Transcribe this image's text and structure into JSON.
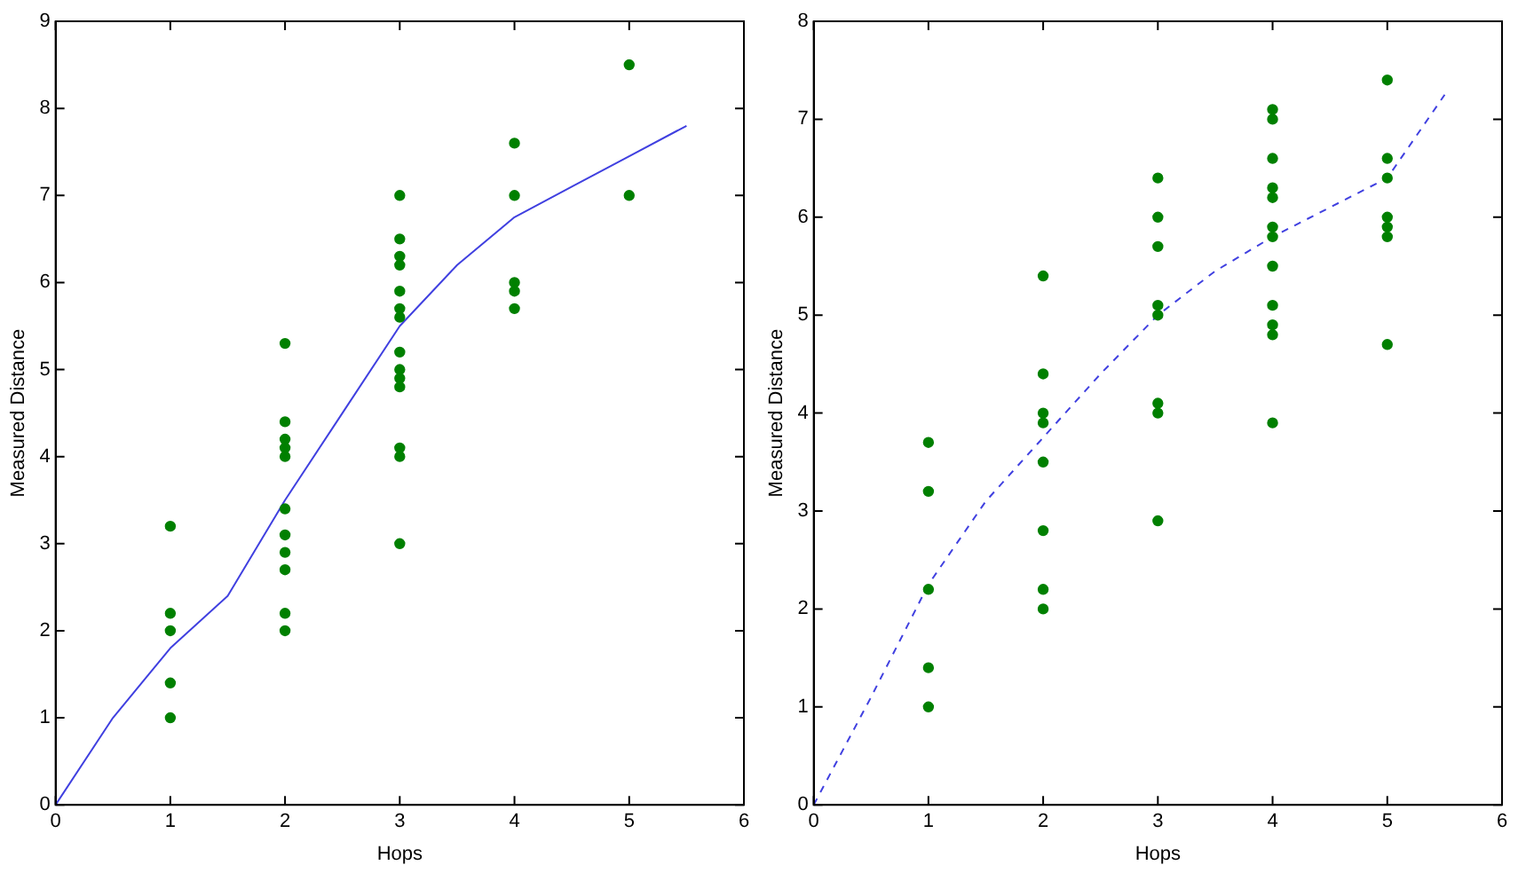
{
  "chart_data": [
    {
      "type": "scatter",
      "xlabel": "Hops",
      "ylabel": "Measured Distance",
      "xlim": [
        0,
        6
      ],
      "xticks": [
        0,
        1,
        2,
        3,
        4,
        5,
        6
      ],
      "ylim": [
        0,
        9
      ],
      "yticks": [
        0,
        1,
        2,
        3,
        4,
        5,
        6,
        7,
        8,
        9
      ],
      "grid": false,
      "legend": false,
      "series": [
        {
          "type": "scatter",
          "marker": "circle",
          "color": "#008000",
          "x": [
            1,
            1,
            1,
            1,
            1,
            2,
            2,
            2,
            2,
            2,
            2,
            2,
            2,
            2,
            2,
            2,
            3,
            3,
            3,
            3,
            3,
            3,
            3,
            3,
            3,
            3,
            3,
            3,
            3,
            3,
            4,
            4,
            4,
            4,
            4,
            5,
            5
          ],
          "values": [
            3.2,
            2.2,
            2.0,
            1.4,
            1.0,
            5.3,
            4.4,
            4.2,
            4.1,
            4.0,
            3.4,
            3.1,
            2.9,
            2.7,
            2.2,
            2.0,
            7.0,
            6.5,
            6.3,
            6.2,
            5.9,
            5.7,
            5.6,
            5.2,
            5.0,
            4.9,
            4.8,
            4.1,
            4.0,
            3.0,
            7.6,
            7.0,
            6.0,
            5.9,
            5.7,
            8.5,
            7.0
          ]
        },
        {
          "type": "line",
          "line_style": "solid",
          "marker": "none",
          "color": "#4040e0",
          "x": [
            0,
            0.5,
            1,
            1.5,
            2,
            2.5,
            3,
            3.5,
            4,
            4.5,
            5,
            5.5
          ],
          "values": [
            0,
            1.0,
            1.8,
            2.4,
            3.5,
            4.5,
            5.5,
            6.2,
            6.75,
            7.1,
            7.45,
            7.8
          ]
        }
      ]
    },
    {
      "type": "scatter",
      "xlabel": "Hops",
      "ylabel": "Measured Distance",
      "xlim": [
        0,
        6
      ],
      "xticks": [
        0,
        1,
        2,
        3,
        4,
        5,
        6
      ],
      "ylim": [
        0,
        8
      ],
      "yticks": [
        0,
        1,
        2,
        3,
        4,
        5,
        6,
        7,
        8
      ],
      "grid": false,
      "legend": false,
      "series": [
        {
          "type": "scatter",
          "marker": "circle",
          "color": "#008000",
          "x": [
            1,
            1,
            1,
            1,
            1,
            2,
            2,
            2,
            2,
            2,
            2,
            2,
            2,
            3,
            3,
            3,
            3,
            3,
            3,
            3,
            3,
            4,
            4,
            4,
            4,
            4,
            4,
            4,
            4,
            4,
            4,
            4,
            4,
            5,
            5,
            5,
            5,
            5,
            5,
            5
          ],
          "values": [
            3.7,
            3.2,
            2.2,
            1.4,
            1.0,
            5.4,
            4.4,
            4.0,
            3.9,
            3.5,
            2.8,
            2.2,
            2.0,
            6.4,
            6.0,
            5.7,
            5.1,
            5.0,
            4.1,
            4.0,
            2.9,
            7.1,
            7.0,
            6.6,
            6.3,
            6.2,
            5.9,
            5.8,
            5.5,
            5.1,
            4.9,
            4.8,
            3.9,
            7.4,
            6.6,
            6.4,
            6.0,
            5.9,
            5.8,
            4.7
          ]
        },
        {
          "type": "line",
          "line_style": "dashed",
          "marker": "none",
          "color": "#4040e0",
          "x": [
            0,
            0.5,
            1,
            1.5,
            2,
            2.5,
            3,
            3.5,
            4,
            4.5,
            5,
            5.5
          ],
          "values": [
            0,
            1.1,
            2.25,
            3.1,
            3.75,
            4.4,
            5.0,
            5.45,
            5.8,
            6.1,
            6.4,
            7.25
          ]
        }
      ]
    }
  ]
}
